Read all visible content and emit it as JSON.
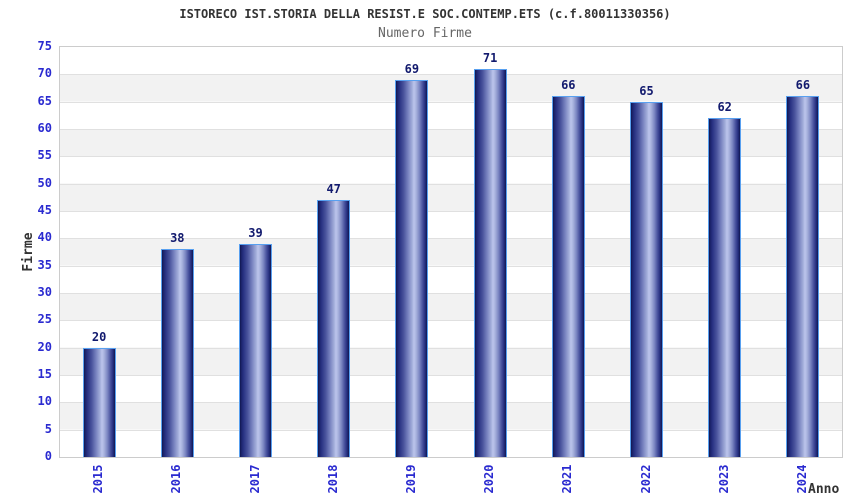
{
  "header": {
    "title": "ISTORECO IST.STORIA DELLA RESIST.E SOC.CONTEMP.ETS (c.f.80011330356)",
    "subtitle": "Numero Firme"
  },
  "chart_data": {
    "type": "bar",
    "title": "ISTORECO IST.STORIA DELLA RESIST.E SOC.CONTEMP.ETS (c.f.80011330356)",
    "subtitle": "Numero Firme",
    "categories": [
      "2015",
      "2016",
      "2017",
      "2018",
      "2019",
      "2020",
      "2021",
      "2022",
      "2023",
      "2024"
    ],
    "values": [
      20,
      38,
      39,
      47,
      69,
      71,
      66,
      65,
      62,
      66
    ],
    "xlabel": "Anno",
    "ylabel": "Firme",
    "ylim": [
      0,
      75
    ],
    "ytick_step": 5,
    "grid": true,
    "legend_position": "none",
    "bar_value_labels": true,
    "colors": {
      "bar_dark": "#11174f",
      "bar_mid": "#7b86c2",
      "bar_highlight": "#bcc5ec",
      "bar_border": "#58a0f0",
      "axis_tick_label": "#2a2ad0",
      "value_label": "#121a6e",
      "title": "#333333",
      "subtitle": "#666666",
      "gridline": "#e0e0e0",
      "band_gray": "#f2f2f2",
      "plot_border": "#cccccc",
      "background": "#ffffff"
    }
  }
}
